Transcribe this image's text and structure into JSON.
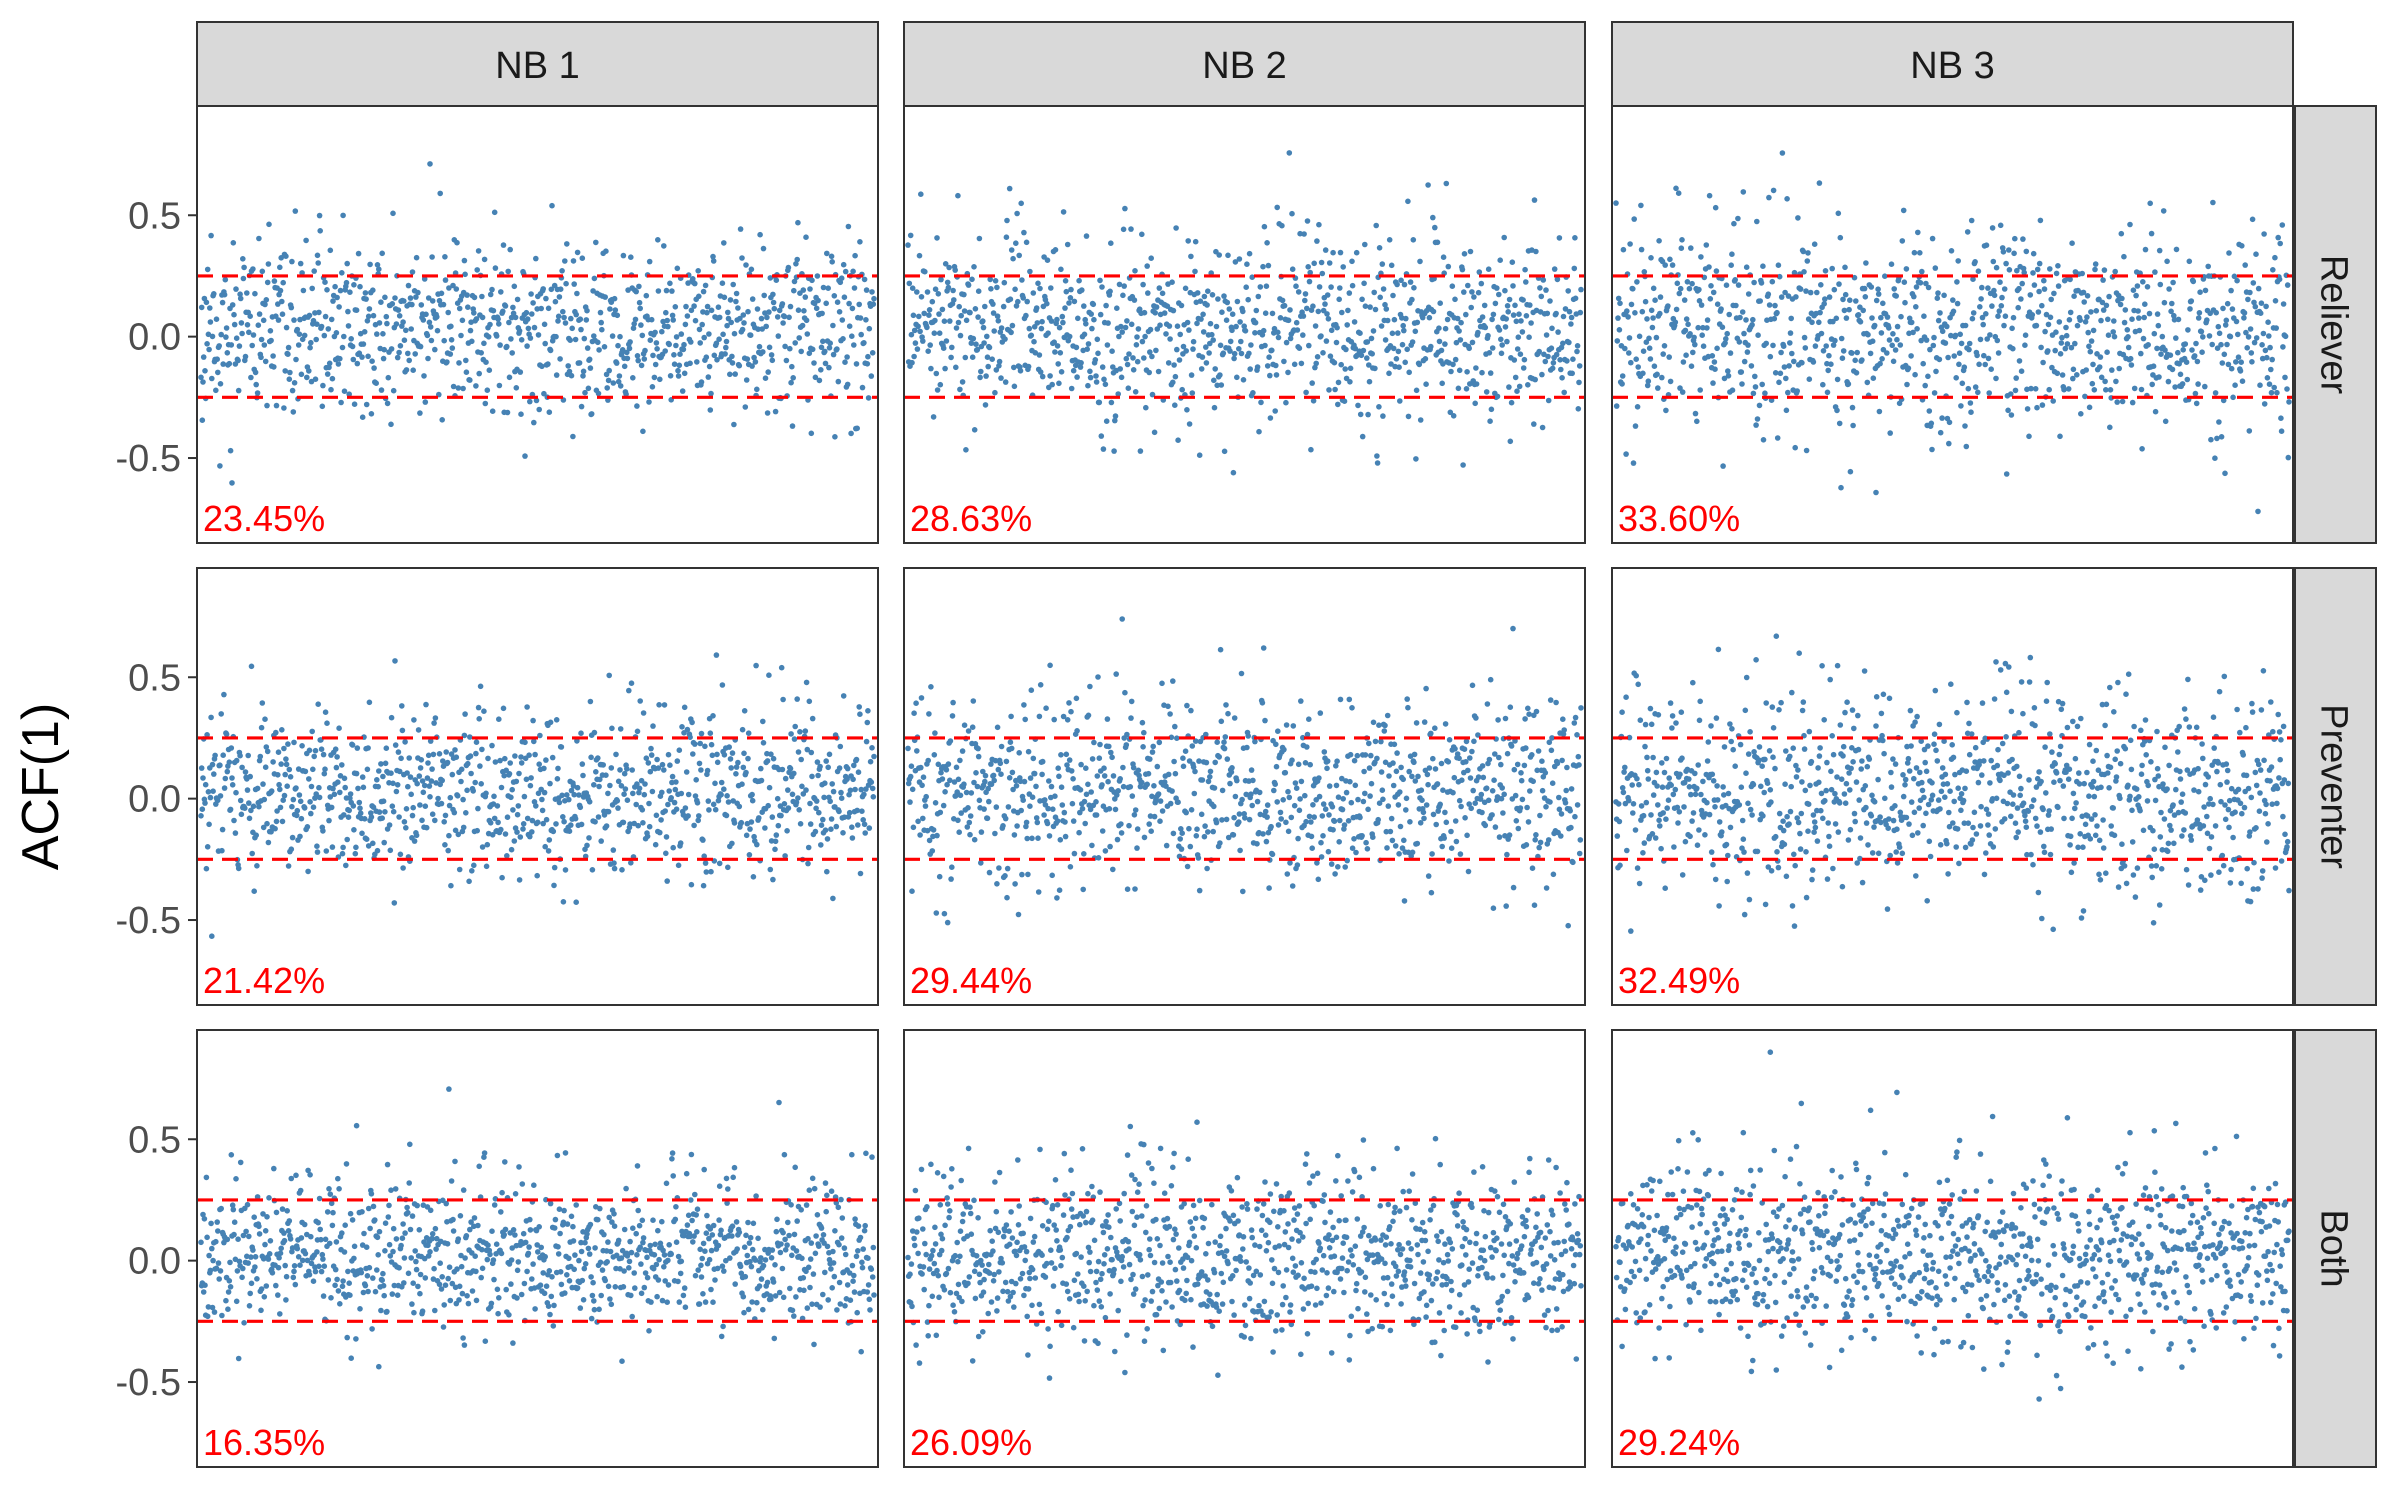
{
  "chart_data": {
    "type": "scatter",
    "ylabel": "ACF(1)",
    "xlabel": "",
    "ylim": [
      -0.85,
      0.95
    ],
    "yticks": [
      {
        "value": 0.5,
        "label": "0.5"
      },
      {
        "value": 0.0,
        "label": "0.0"
      },
      {
        "value": -0.5,
        "label": "-0.5"
      }
    ],
    "reference_lines": [
      0.25,
      -0.25
    ],
    "grid": false,
    "colors": {
      "points": "#4682B4",
      "reference_line": "#FF0000",
      "annotation": "#FF0000",
      "strip_fill": "#D9D9D9",
      "panel_border": "#333333"
    },
    "n_points_per_panel": 1000,
    "columns": [
      "NB 1",
      "NB 2",
      "NB 3"
    ],
    "rows": [
      "Reliever",
      "Preventer",
      "Both"
    ],
    "panels": [
      {
        "row": "Reliever",
        "column": "NB 1",
        "percent_label": "23.45%",
        "seed": 11,
        "sd": 0.165
      },
      {
        "row": "Reliever",
        "column": "NB 2",
        "percent_label": "28.63%",
        "seed": 23,
        "sd": 0.18
      },
      {
        "row": "Reliever",
        "column": "NB 3",
        "percent_label": "33.60%",
        "seed": 37,
        "sd": 0.2
      },
      {
        "row": "Preventer",
        "column": "NB 1",
        "percent_label": "21.42%",
        "seed": 41,
        "sd": 0.16
      },
      {
        "row": "Preventer",
        "column": "NB 2",
        "percent_label": "29.44%",
        "seed": 53,
        "sd": 0.185
      },
      {
        "row": "Preventer",
        "column": "NB 3",
        "percent_label": "32.49%",
        "seed": 67,
        "sd": 0.195
      },
      {
        "row": "Both",
        "column": "NB 1",
        "percent_label": "16.35%",
        "seed": 71,
        "sd": 0.14
      },
      {
        "row": "Both",
        "column": "NB 2",
        "percent_label": "26.09%",
        "seed": 83,
        "sd": 0.175
      },
      {
        "row": "Both",
        "column": "NB 3",
        "percent_label": "29.24%",
        "seed": 97,
        "sd": 0.185
      }
    ]
  }
}
